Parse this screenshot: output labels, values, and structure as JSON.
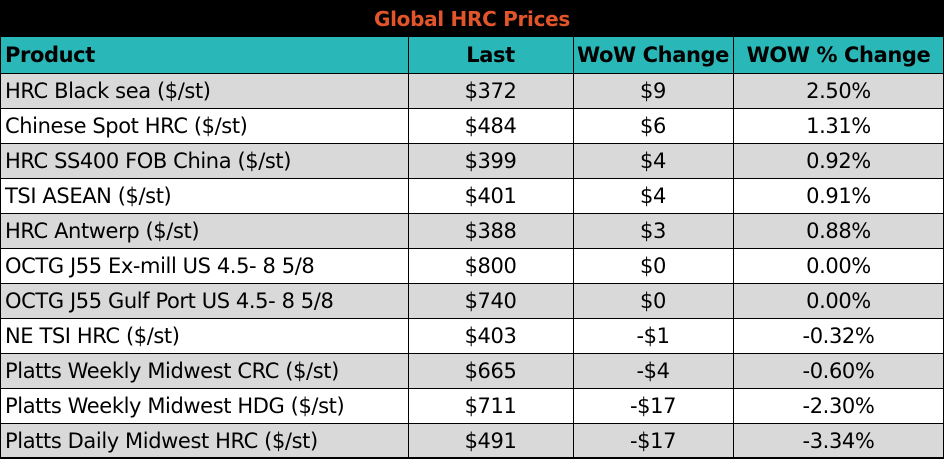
{
  "title": "Global HRC Prices",
  "columns": [
    "Product",
    "Last",
    "WoW Change",
    "WOW % Change"
  ],
  "rows": [
    [
      "HRC Black sea ($/st)",
      "$372",
      "$9",
      "2.50%"
    ],
    [
      "Chinese Spot HRC ($/st)",
      "$484",
      "$6",
      "1.31%"
    ],
    [
      "HRC SS400 FOB China ($/st)",
      "$399",
      "$4",
      "0.92%"
    ],
    [
      "TSI ASEAN ($/st)",
      "$401",
      "$4",
      "0.91%"
    ],
    [
      "HRC Antwerp ($/st)",
      "$388",
      "$3",
      "0.88%"
    ],
    [
      "OCTG J55 Ex-mill US 4.5- 8 5/8",
      "$800",
      "$0",
      "0.00%"
    ],
    [
      "OCTG J55 Gulf Port US 4.5- 8 5/8",
      "$740",
      "$0",
      "0.00%"
    ],
    [
      "NE TSI HRC ($/st)",
      "$403",
      "-$1",
      "-0.32%"
    ],
    [
      "Platts Weekly Midwest CRC ($/st)",
      "$665",
      "-$4",
      "-0.60%"
    ],
    [
      "Platts Weekly Midwest HDG ($/st)",
      "$711",
      "-$17",
      "-2.30%"
    ],
    [
      "Platts Daily Midwest HRC ($/st)",
      "$491",
      "-$17",
      "-3.34%"
    ]
  ],
  "colors": {
    "title_bg": "#000000",
    "title_text": "#e2552a",
    "header_bg": "#2ab7b8",
    "row_shade": "#d9d9d9",
    "row_plain": "#ffffff"
  }
}
